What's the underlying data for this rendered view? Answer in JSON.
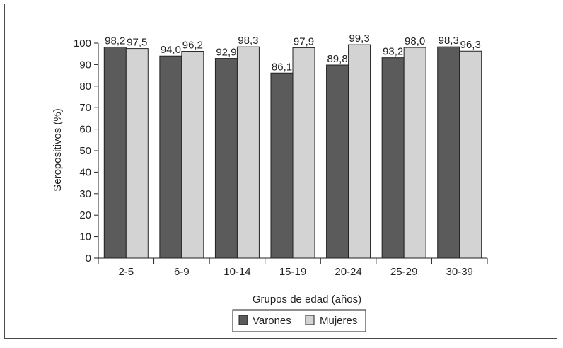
{
  "chart_data": {
    "type": "bar",
    "title": "",
    "xlabel": "Grupos de edad (años)",
    "ylabel": "Seropositivos (%)",
    "ylim": [
      0,
      100
    ],
    "yticks": [
      "0",
      "10",
      "20",
      "30",
      "40",
      "50",
      "60",
      "70",
      "80",
      "90",
      "100"
    ],
    "categories": [
      "2-5",
      "6-9",
      "10-14",
      "15-19",
      "20-24",
      "25-29",
      "30-39"
    ],
    "series": [
      {
        "name": "Varones",
        "color": "#5b5b5b",
        "values": [
          98.2,
          94.0,
          92.9,
          86.1,
          89.8,
          93.2,
          98.3
        ],
        "labels": [
          "98,2",
          "94,0",
          "92,9",
          "86,1",
          "89,8",
          "93,2",
          "98,3"
        ]
      },
      {
        "name": "Mujeres",
        "color": "#d3d3d3",
        "values": [
          97.5,
          96.2,
          98.3,
          97.9,
          99.3,
          98.0,
          96.3
        ],
        "labels": [
          "97,5",
          "96,2",
          "98,3",
          "97,9",
          "99,3",
          "98,0",
          "96,3"
        ]
      }
    ],
    "grid": false,
    "legend_position": "bottom"
  }
}
